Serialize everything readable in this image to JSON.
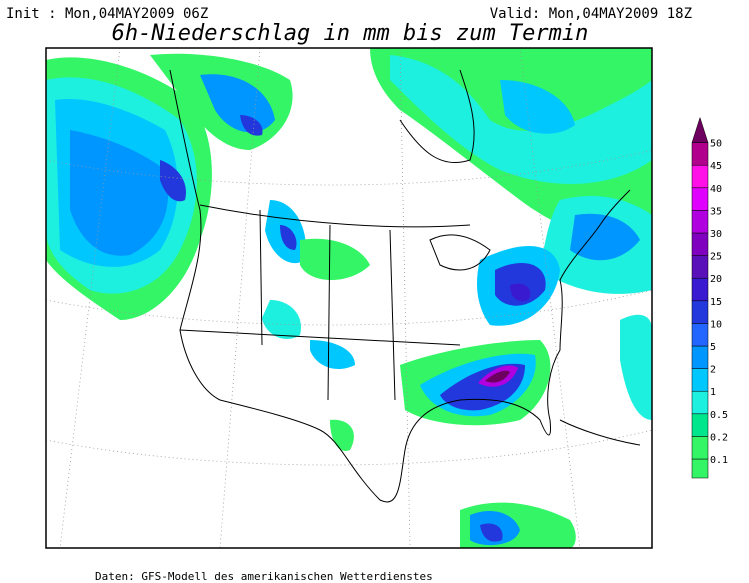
{
  "header": {
    "init": "Init : Mon,04MAY2009 06Z",
    "valid": "Valid: Mon,04MAY2009 18Z",
    "title": "6h-Niederschlag in mm bis zum Termin"
  },
  "footer": "Daten: GFS-Modell des amerikanischen Wetterdienstes",
  "colorbar": {
    "levels": [
      {
        "label": "0.1",
        "color": "#33f566"
      },
      {
        "label": "0.2",
        "color": "#00e68c"
      },
      {
        "label": "0.5",
        "color": "#1ef0e0"
      },
      {
        "label": "1",
        "color": "#00c8ff"
      },
      {
        "label": "2",
        "color": "#0096ff"
      },
      {
        "label": "5",
        "color": "#2266ff"
      },
      {
        "label": "10",
        "color": "#2238dc"
      },
      {
        "label": "15",
        "color": "#3a1ad0"
      },
      {
        "label": "20",
        "color": "#5a10b8"
      },
      {
        "label": "25",
        "color": "#8000c0"
      },
      {
        "label": "30",
        "color": "#b000e0"
      },
      {
        "label": "35",
        "color": "#e000ff"
      },
      {
        "label": "40",
        "color": "#ff10e6"
      },
      {
        "label": "45",
        "color": "#b0008c"
      },
      {
        "label": "50",
        "color": "#6e0060"
      }
    ]
  }
}
